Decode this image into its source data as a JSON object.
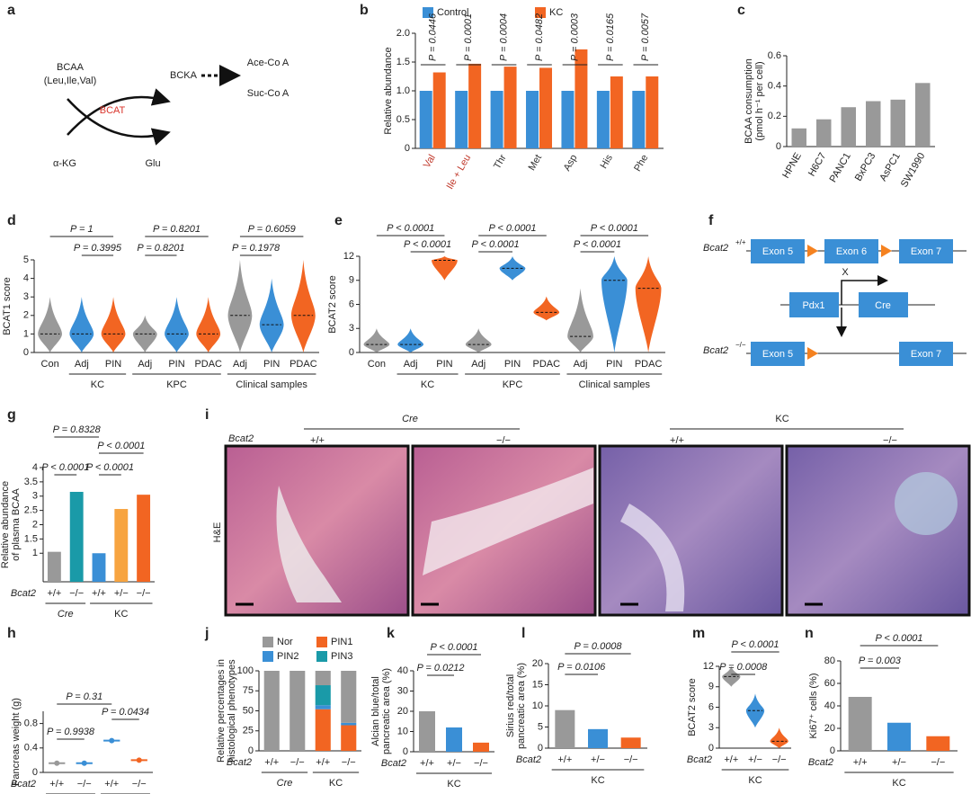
{
  "diagrams": {
    "a": {
      "label": "a",
      "substrate": "BCAA",
      "substrate_detail": "(Leu,Ile,Val)",
      "enzyme": "BCAT",
      "cosubstrate": "α-KG",
      "coproduct": "Glu",
      "product": "BCKA",
      "end1": "Ace-Co A",
      "end2": "Suc-Co A"
    },
    "f": {
      "label": "f",
      "wt": "Bcat2",
      "wt_sup": "+/+",
      "ko": "Bcat2",
      "ko_sup": "−/−",
      "exon5": "Exon 5",
      "exon6": "Exon 6",
      "exon7": "Exon 7",
      "pdx1": "Pdx1",
      "cre": "Cre",
      "cross": "X"
    },
    "i": {
      "label": "i",
      "group1": "Cre",
      "group2": "KC",
      "row_label": "Bcat2",
      "genotypes": [
        "+/+",
        "−/−",
        "+/+",
        "−/−"
      ],
      "stain": "H&E"
    }
  },
  "chart_data": [
    {
      "type": "grouped_bar",
      "label": "b",
      "ylabel": [
        "Relative abundance"
      ],
      "categories": [
        "Val",
        "Ile + Leu",
        "Thr",
        "Met",
        "Asp",
        "His",
        "Phe"
      ],
      "category_colors": [
        "#c0392b",
        "#c0392b",
        "#333333",
        "#333333",
        "#333333",
        "#333333",
        "#333333"
      ],
      "series": [
        {
          "name": "Control",
          "color": "#3a8fd6",
          "values": [
            1.0,
            1.0,
            1.0,
            1.0,
            1.0,
            1.0,
            1.0
          ]
        },
        {
          "name": "KC",
          "color": "#f26522",
          "values": [
            1.32,
            1.47,
            1.42,
            1.4,
            1.72,
            1.25,
            1.25
          ]
        }
      ],
      "ylim": [
        0,
        2
      ],
      "yticks": [
        0,
        0.5,
        {
          "value": 1,
          "label": "1.0"
        },
        1.5,
        {
          "value": 2,
          "label": "2.0"
        }
      ],
      "annotations": [
        "P = 0.0446",
        "P = 0.0001",
        "P = 0.0004",
        "P = 0.0482",
        "P = 0.0003",
        "P = 0.0165",
        "P = 0.0057"
      ]
    },
    {
      "type": "bar",
      "label": "c",
      "ylabel": [
        "BCAA consumption",
        "(pmol h⁻¹ per cell)"
      ],
      "categories": [
        "HPNE",
        "H6C7",
        "PANC1",
        "BxPC3",
        "AsPC1",
        "SW1990"
      ],
      "values": [
        0.12,
        0.18,
        0.26,
        0.3,
        0.31,
        0.42
      ],
      "colors": [
        "#999999",
        "#999999",
        "#999999",
        "#999999",
        "#999999",
        "#999999"
      ],
      "ylim": [
        0,
        0.6
      ],
      "yticks": [
        0,
        0.2,
        0.4,
        0.6
      ]
    },
    {
      "type": "violin",
      "label": "d",
      "ylabel": [
        "BCAT1 score"
      ],
      "categories": [
        "Con",
        "Adj",
        "PIN",
        "Adj",
        "PIN",
        "PDAC",
        "Adj",
        "PIN",
        "PDAC"
      ],
      "groups": [
        "KC",
        "KPC",
        "Clinical samples"
      ],
      "medians": [
        1,
        1,
        1,
        1,
        1,
        1,
        2,
        1.5,
        2
      ],
      "mins": [
        0,
        0,
        0,
        0,
        0,
        0,
        0,
        0,
        0
      ],
      "maxs": [
        3,
        3,
        3,
        2,
        3,
        3,
        5,
        4,
        5
      ],
      "colors": [
        "#999999",
        "#3a8fd6",
        "#f26522",
        "#999999",
        "#3a8fd6",
        "#f26522",
        "#999999",
        "#3a8fd6",
        "#f26522"
      ],
      "ylim": [
        0,
        5
      ],
      "yticks": [
        0,
        1,
        2,
        3,
        4,
        5
      ],
      "annotations": [
        "P = 1",
        "P = 0.3995",
        "P = 0.8201",
        "P = 0.8201",
        "P = 0.6059",
        "P = 0.1978"
      ]
    },
    {
      "type": "violin",
      "label": "e",
      "ylabel": [
        "BCAT2 score"
      ],
      "categories": [
        "Con",
        "Adj",
        "PIN",
        "Adj",
        "PIN",
        "PDAC",
        "Adj",
        "PIN",
        "PDAC"
      ],
      "groups": [
        "KC",
        "KPC",
        "Clinical samples"
      ],
      "medians": [
        1,
        1,
        11.5,
        1,
        10.5,
        5,
        2,
        9,
        8
      ],
      "mins": [
        0,
        0,
        9,
        0,
        9,
        4,
        0,
        0,
        0
      ],
      "maxs": [
        3,
        3,
        12,
        3,
        12,
        7,
        8,
        12,
        12
      ],
      "colors": [
        "#999999",
        "#3a8fd6",
        "#f26522",
        "#999999",
        "#3a8fd6",
        "#f26522",
        "#999999",
        "#3a8fd6",
        "#f26522"
      ],
      "ylim": [
        0,
        12
      ],
      "yticks": [
        0,
        3,
        6,
        9,
        12
      ],
      "annotations": [
        "P < 0.0001",
        "P < 0.0001",
        "P < 0.0001",
        "P < 0.0001",
        "P < 0.0001",
        "P < 0.0001"
      ]
    },
    {
      "type": "bar",
      "label": "g",
      "ylabel": [
        "Relative abundance",
        "of plasma BCAA"
      ],
      "row_label": "Bcat2",
      "categories": [
        "+/+",
        "−/−",
        "+/+",
        "+/−",
        "−/−"
      ],
      "groups": [
        "Cre",
        "KC"
      ],
      "values": [
        1.05,
        3.15,
        1.0,
        2.55,
        3.05
      ],
      "colors": [
        "#999999",
        "#1a9aa8",
        "#3a8fd6",
        "#f7a440",
        "#f26522"
      ],
      "ylim": [
        0,
        4
      ],
      "yticks": [
        1,
        1.5,
        2,
        2.5,
        3,
        3.5,
        4
      ],
      "annotations": [
        "P = 0.8328",
        "P < 0.0001",
        "P < 0.0001",
        "P < 0.0001"
      ]
    },
    {
      "type": "dot",
      "label": "h",
      "ylabel": [
        "Pancreas weight (g)"
      ],
      "row_label": "Bcat2",
      "categories": [
        "+/+",
        "−/−",
        "+/+",
        "−/−"
      ],
      "groups": [
        "Cre",
        "KC"
      ],
      "values": [
        0.15,
        0.15,
        0.52,
        0.2
      ],
      "colors": [
        "#999999",
        "#3a8fd6",
        "#3a8fd6",
        "#f26522"
      ],
      "ylim": [
        0,
        1
      ],
      "yticks": [
        0,
        0.4,
        0.8
      ],
      "annotations": [
        "P = 0.31",
        "P = 0.0434",
        "P = 0.9938"
      ]
    },
    {
      "type": "stacked_bar",
      "label": "j",
      "ylabel": [
        "Relative percentages in",
        "histological phenotypes"
      ],
      "row_label": "Bcat2",
      "categories": [
        "+/+",
        "−/−",
        "+/+",
        "−/−"
      ],
      "groups": [
        "Cre",
        "KC"
      ],
      "series": [
        {
          "name": "Nor",
          "color": "#999999",
          "values": [
            100,
            100,
            18,
            65
          ]
        },
        {
          "name": "PIN1",
          "color": "#f26522",
          "values": [
            0,
            0,
            52,
            32
          ]
        },
        {
          "name": "PIN2",
          "color": "#3a8fd6",
          "values": [
            0,
            0,
            5,
            3
          ]
        },
        {
          "name": "PIN3",
          "color": "#1a9aa8",
          "values": [
            0,
            0,
            25,
            0
          ]
        }
      ],
      "ylim": [
        0,
        100
      ],
      "yticks": [
        0,
        25,
        50,
        75,
        100
      ]
    },
    {
      "type": "bar",
      "label": "k",
      "ylabel": [
        "Alcian blue/total",
        "pancreatic area (%)"
      ],
      "row_label": "Bcat2",
      "categories": [
        "+/+",
        "+/−",
        "−/−"
      ],
      "groups": [
        "KC"
      ],
      "values": [
        20,
        12,
        4.5
      ],
      "colors": [
        "#999999",
        "#3a8fd6",
        "#f26522"
      ],
      "ylim": [
        0,
        40
      ],
      "yticks": [
        0,
        10,
        20,
        30,
        40
      ],
      "annotations": [
        "P < 0.0001",
        "P = 0.0212"
      ]
    },
    {
      "type": "bar",
      "label": "l",
      "ylabel": [
        "Sirius red/total",
        "pancreatic area (%)"
      ],
      "row_label": "Bcat2",
      "categories": [
        "+/+",
        "+/−",
        "−/−"
      ],
      "groups": [
        "KC"
      ],
      "values": [
        9,
        4.5,
        2.5
      ],
      "colors": [
        "#999999",
        "#3a8fd6",
        "#f26522"
      ],
      "ylim": [
        0,
        20
      ],
      "yticks": [
        0,
        5,
        10,
        15,
        20
      ],
      "annotations": [
        "P = 0.0008",
        "P = 0.0106"
      ]
    },
    {
      "type": "violin",
      "label": "m",
      "ylabel": [
        "BCAT2 score"
      ],
      "row_label": "Bcat2",
      "categories": [
        "+/+",
        "+/−",
        "−/−"
      ],
      "groups": [
        "KC"
      ],
      "medians": [
        10.5,
        5.5,
        1
      ],
      "mins": [
        9,
        3,
        0
      ],
      "maxs": [
        12,
        8,
        3
      ],
      "colors": [
        "#999999",
        "#3a8fd6",
        "#f26522"
      ],
      "ylim": [
        0,
        12
      ],
      "yticks": [
        0,
        3,
        6,
        9,
        12
      ],
      "annotations": [
        "P < 0.0001",
        "P = 0.0008"
      ]
    },
    {
      "type": "bar",
      "label": "n",
      "ylabel": [
        "Ki67⁺ cells (%)"
      ],
      "row_label": "Bcat2",
      "categories": [
        "+/+",
        "+/−",
        "−/−"
      ],
      "groups": [
        "KC"
      ],
      "values": [
        48,
        25,
        13
      ],
      "colors": [
        "#999999",
        "#3a8fd6",
        "#f26522"
      ],
      "ylim": [
        0,
        80
      ],
      "yticks": [
        0,
        20,
        40,
        60,
        80
      ],
      "annotations": [
        "P < 0.0001",
        "P = 0.003"
      ]
    }
  ]
}
